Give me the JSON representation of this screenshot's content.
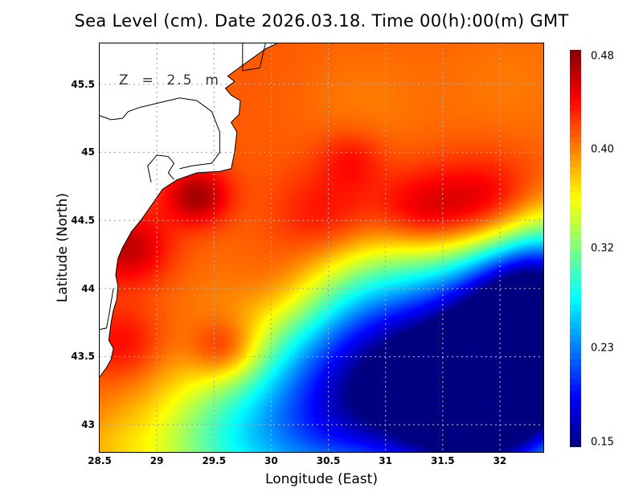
{
  "chart_data": {
    "type": "heatmap",
    "title": "Sea Level (cm). Date 2026.03.18. Time 00(h):00(m) GMT",
    "xlabel": "Longitude (East)",
    "ylabel": "Latitude (North)",
    "annotation": "Z  =  2.5  m",
    "xlim": [
      28.5,
      32.38
    ],
    "ylim": [
      42.8,
      45.8
    ],
    "xticks": [
      28.5,
      29,
      29.5,
      30,
      30.5,
      31,
      31.5,
      32
    ],
    "xtick_labels": [
      "28.5",
      "29",
      "29.5",
      "30",
      "30.5",
      "31",
      "31.5",
      "32"
    ],
    "yticks": [
      43,
      43.5,
      44,
      44.5,
      45,
      45.5
    ],
    "ytick_labels": [
      "43",
      "43.5",
      "44",
      "44.5",
      "45",
      "45.5"
    ],
    "grid": true,
    "colorbar": {
      "vmin": 0.15,
      "vmax": 0.48,
      "ticks": [
        0.15,
        0.23,
        0.32,
        0.4,
        0.48
      ],
      "tick_labels": [
        "0.15",
        "0.23",
        "0.32",
        "0.40",
        "0.48"
      ],
      "colormap": "jet",
      "placement": "right"
    },
    "field": {
      "description": "Approximate sea level field reconstructed as background plus gaussian features (lon, lat, amplitude, radius in degrees)",
      "background": 0.41,
      "features": [
        {
          "lon": 31.9,
          "lat": 44.55,
          "amp": 0.07,
          "r": 0.35
        },
        {
          "lon": 31.3,
          "lat": 44.55,
          "amp": 0.05,
          "r": 0.3
        },
        {
          "lon": 30.5,
          "lat": 44.5,
          "amp": 0.045,
          "r": 0.35
        },
        {
          "lon": 29.35,
          "lat": 44.68,
          "amp": 0.06,
          "r": 0.2
        },
        {
          "lon": 28.75,
          "lat": 44.3,
          "amp": 0.05,
          "r": 0.25
        },
        {
          "lon": 29.6,
          "lat": 43.55,
          "amp": 0.055,
          "r": 0.22
        },
        {
          "lon": 30.1,
          "lat": 44.0,
          "amp": 0.035,
          "r": 0.35
        },
        {
          "lon": 28.7,
          "lat": 43.6,
          "amp": 0.03,
          "r": 0.25
        },
        {
          "lon": 30.7,
          "lat": 44.95,
          "amp": 0.025,
          "r": 0.2
        },
        {
          "lon": 30.8,
          "lat": 45.4,
          "amp": -0.01,
          "r": 0.4
        },
        {
          "lon": 32.1,
          "lat": 45.5,
          "amp": -0.01,
          "r": 0.5
        },
        {
          "lon": 31.0,
          "lat": 43.5,
          "amp": -0.2,
          "r": 0.75
        },
        {
          "lon": 32.3,
          "lat": 43.5,
          "amp": -0.24,
          "r": 0.6
        },
        {
          "lon": 31.8,
          "lat": 43.0,
          "amp": -0.18,
          "r": 0.55
        },
        {
          "lon": 32.3,
          "lat": 44.1,
          "amp": -0.15,
          "r": 0.45
        },
        {
          "lon": 30.4,
          "lat": 42.9,
          "amp": -0.1,
          "r": 0.6
        },
        {
          "lon": 29.5,
          "lat": 42.85,
          "amp": -0.07,
          "r": 0.5
        },
        {
          "lon": 28.6,
          "lat": 42.8,
          "amp": -0.02,
          "r": 0.3
        }
      ]
    },
    "coastline": [
      [
        28.5,
        43.35
      ],
      [
        28.56,
        43.42
      ],
      [
        28.6,
        43.48
      ],
      [
        28.62,
        43.56
      ],
      [
        28.58,
        43.62
      ],
      [
        28.6,
        43.75
      ],
      [
        28.62,
        43.84
      ],
      [
        28.65,
        43.92
      ],
      [
        28.66,
        44.02
      ],
      [
        28.64,
        44.1
      ],
      [
        28.66,
        44.22
      ],
      [
        28.7,
        44.3
      ],
      [
        28.78,
        44.42
      ],
      [
        28.86,
        44.5
      ],
      [
        28.96,
        44.62
      ],
      [
        29.05,
        44.73
      ],
      [
        29.18,
        44.8
      ],
      [
        29.35,
        44.85
      ],
      [
        29.55,
        44.86
      ],
      [
        29.65,
        44.88
      ],
      [
        29.68,
        45.0
      ],
      [
        29.7,
        45.15
      ],
      [
        29.65,
        45.22
      ],
      [
        29.72,
        45.28
      ],
      [
        29.73,
        45.38
      ],
      [
        29.65,
        45.42
      ],
      [
        29.6,
        45.47
      ],
      [
        29.68,
        45.52
      ],
      [
        29.62,
        45.56
      ],
      [
        29.75,
        45.64
      ],
      [
        29.95,
        45.76
      ],
      [
        30.05,
        45.8
      ]
    ]
  }
}
